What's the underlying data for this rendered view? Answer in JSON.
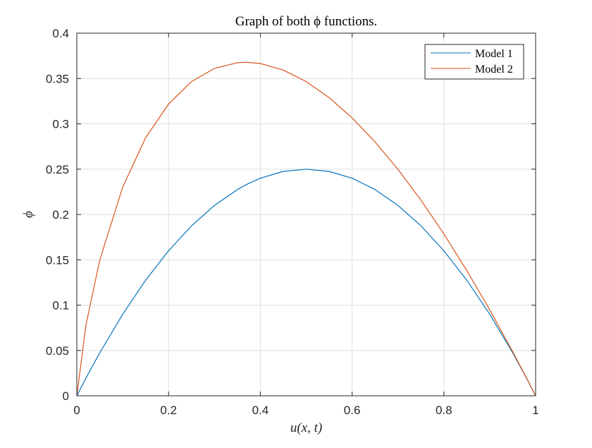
{
  "chart_data": {
    "type": "line",
    "title": "Graph of both ϕ functions.",
    "xlabel": "u(x, t)",
    "ylabel": "ϕ",
    "xlim": [
      0,
      1
    ],
    "ylim": [
      0,
      0.4
    ],
    "xticks": [
      0,
      0.2,
      0.4,
      0.6,
      0.8,
      1
    ],
    "xtick_labels": [
      "0",
      "0.2",
      "0.4",
      "0.6",
      "0.8",
      "1"
    ],
    "yticks": [
      0,
      0.05,
      0.1,
      0.15,
      0.2,
      0.25,
      0.3,
      0.35,
      0.4
    ],
    "ytick_labels": [
      "0",
      "0.05",
      "0.1",
      "0.15",
      "0.2",
      "0.25",
      "0.3",
      "0.35",
      "0.4"
    ],
    "grid": true,
    "legend_position": "top-right",
    "x": [
      0,
      0.02,
      0.05,
      0.1,
      0.15,
      0.2,
      0.25,
      0.3,
      0.35,
      0.3679,
      0.4,
      0.45,
      0.5,
      0.55,
      0.6,
      0.65,
      0.7,
      0.75,
      0.8,
      0.85,
      0.9,
      0.95,
      0.98,
      1
    ],
    "series": [
      {
        "name": "Model 1",
        "color": "#0072BD",
        "values": [
          0,
          0.0196,
          0.0475,
          0.09,
          0.1275,
          0.16,
          0.1875,
          0.21,
          0.2275,
          0.2326,
          0.24,
          0.2475,
          0.25,
          0.2475,
          0.24,
          0.2275,
          0.21,
          0.1875,
          0.16,
          0.1275,
          0.09,
          0.0475,
          0.0196,
          0
        ]
      },
      {
        "name": "Model 2",
        "color": "#D95319",
        "values": [
          0,
          0.0782,
          0.1498,
          0.2303,
          0.2846,
          0.3219,
          0.3466,
          0.3612,
          0.3674,
          0.3679,
          0.3665,
          0.3593,
          0.3466,
          0.3288,
          0.3065,
          0.28,
          0.2497,
          0.2158,
          0.1785,
          0.1381,
          0.0948,
          0.0487,
          0.0198,
          0
        ]
      }
    ]
  }
}
